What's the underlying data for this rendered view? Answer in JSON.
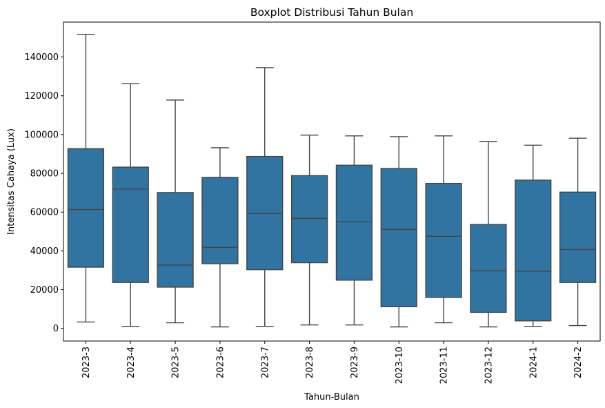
{
  "chart_data": {
    "type": "boxplot",
    "title": "Boxplot Distribusi Tahun Bulan",
    "xlabel": "Tahun-Bulan",
    "ylabel": "Intensitas Cahaya (Lux)",
    "ylim": [
      -6500,
      158000
    ],
    "yticks": [
      0,
      20000,
      40000,
      60000,
      80000,
      100000,
      120000,
      140000
    ],
    "ytick_labels": [
      "0",
      "20000",
      "40000",
      "60000",
      "80000",
      "100000",
      "120000",
      "140000"
    ],
    "grid": false,
    "box_color": "#3274a1",
    "line_color": "#444444",
    "categories": [
      "2023-3",
      "2023-4",
      "2023-5",
      "2023-6",
      "2023-7",
      "2023-8",
      "2023-9",
      "2023-10",
      "2023-11",
      "2023-12",
      "2024-1",
      "2024-2"
    ],
    "boxes": [
      {
        "min": 3300,
        "q1": 31600,
        "median": 61300,
        "q3": 92700,
        "max": 151700
      },
      {
        "min": 1100,
        "q1": 23700,
        "median": 71900,
        "q3": 83200,
        "max": 126200
      },
      {
        "min": 2900,
        "q1": 21300,
        "median": 32700,
        "q3": 70100,
        "max": 117800
      },
      {
        "min": 800,
        "q1": 33400,
        "median": 41800,
        "q3": 77900,
        "max": 93200
      },
      {
        "min": 1100,
        "q1": 30300,
        "median": 59300,
        "q3": 88700,
        "max": 134500
      },
      {
        "min": 1800,
        "q1": 33900,
        "median": 56700,
        "q3": 78800,
        "max": 99700
      },
      {
        "min": 1800,
        "q1": 24900,
        "median": 55000,
        "q3": 84200,
        "max": 99300
      },
      {
        "min": 800,
        "q1": 11200,
        "median": 51100,
        "q3": 82500,
        "max": 98900
      },
      {
        "min": 2900,
        "q1": 16000,
        "median": 47500,
        "q3": 74800,
        "max": 99300
      },
      {
        "min": 800,
        "q1": 8300,
        "median": 29800,
        "q3": 53600,
        "max": 96400
      },
      {
        "min": 1100,
        "q1": 3900,
        "median": 29500,
        "q3": 76500,
        "max": 94500
      },
      {
        "min": 1500,
        "q1": 23700,
        "median": 40700,
        "q3": 70300,
        "max": 98100
      }
    ]
  }
}
